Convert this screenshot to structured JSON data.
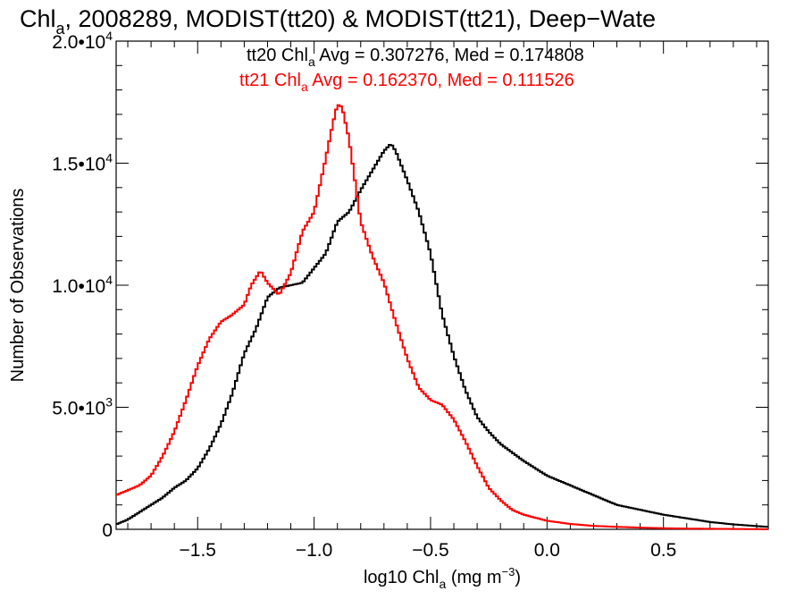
{
  "title": {
    "pre": "Chl",
    "sub": "a",
    "post": ", 2008289, MODIST(tt20) & MODIST(tt21), Deep−Wate"
  },
  "chart_data": {
    "type": "line",
    "style": "histogram-step",
    "xlabel": {
      "pre": "log10 Chl",
      "sub": "a",
      "mid": " (mg m",
      "sup": "−3",
      "post": ")"
    },
    "ylabel": "Number of Observations",
    "xlim": [
      -1.85,
      0.95
    ],
    "ylim": [
      0,
      20000
    ],
    "x_ticks": [
      {
        "value": -1.5,
        "label": "−1.5"
      },
      {
        "value": -1.0,
        "label": "−1.0"
      },
      {
        "value": -0.5,
        "label": "−0.5"
      },
      {
        "value": 0.0,
        "label": "0.0"
      },
      {
        "value": 0.5,
        "label": "0.5"
      }
    ],
    "y_ticks": [
      {
        "value": 0,
        "label": "0"
      },
      {
        "value": 5000,
        "mant": "5.0•10",
        "exp": "3"
      },
      {
        "value": 10000,
        "mant": "1.0•10",
        "exp": "4"
      },
      {
        "value": 15000,
        "mant": "1.5•10",
        "exp": "4"
      },
      {
        "value": 20000,
        "mant": "2.0•10",
        "exp": "4"
      }
    ],
    "grid": false,
    "series": [
      {
        "color": "#000000",
        "annotation": {
          "pre": "tt20 Chl",
          "sub": "a",
          "post": " Avg = 0.307276, Med = 0.174808"
        },
        "x": [
          -1.85,
          -1.8,
          -1.75,
          -1.7,
          -1.65,
          -1.6,
          -1.55,
          -1.5,
          -1.45,
          -1.4,
          -1.35,
          -1.3,
          -1.25,
          -1.2,
          -1.15,
          -1.1,
          -1.05,
          -1.0,
          -0.95,
          -0.9,
          -0.85,
          -0.8,
          -0.75,
          -0.7,
          -0.67,
          -0.65,
          -0.6,
          -0.55,
          -0.5,
          -0.45,
          -0.4,
          -0.35,
          -0.3,
          -0.25,
          -0.2,
          -0.1,
          0.0,
          0.1,
          0.2,
          0.3,
          0.4,
          0.5,
          0.6,
          0.7,
          0.8,
          0.95
        ],
        "y": [
          200,
          400,
          700,
          1000,
          1300,
          1700,
          2000,
          2500,
          3300,
          4300,
          5600,
          7200,
          8200,
          9500,
          9900,
          10000,
          10100,
          10700,
          11300,
          12600,
          13000,
          13900,
          14700,
          15500,
          15800,
          15500,
          14300,
          13000,
          11300,
          8800,
          7100,
          5700,
          4600,
          4000,
          3500,
          2800,
          2200,
          1800,
          1400,
          1000,
          800,
          600,
          450,
          300,
          200,
          100
        ]
      },
      {
        "color": "#ff0000",
        "annotation": {
          "pre": "tt21 Chl",
          "sub": "a",
          "post": " Avg = 0.162370, Med = 0.111526"
        },
        "x": [
          -1.85,
          -1.8,
          -1.75,
          -1.7,
          -1.65,
          -1.6,
          -1.55,
          -1.5,
          -1.45,
          -1.4,
          -1.35,
          -1.3,
          -1.27,
          -1.23,
          -1.2,
          -1.15,
          -1.1,
          -1.05,
          -1.0,
          -0.95,
          -0.92,
          -0.9,
          -0.88,
          -0.85,
          -0.8,
          -0.75,
          -0.7,
          -0.65,
          -0.6,
          -0.55,
          -0.5,
          -0.45,
          -0.4,
          -0.35,
          -0.3,
          -0.25,
          -0.2,
          -0.15,
          -0.1,
          0.0,
          0.1,
          0.2,
          0.3,
          0.4,
          0.5,
          0.6,
          0.8,
          0.95
        ],
        "y": [
          1400,
          1600,
          1800,
          2200,
          3000,
          4000,
          5300,
          6700,
          7800,
          8500,
          8800,
          9200,
          10000,
          10600,
          10100,
          9600,
          10500,
          12200,
          13000,
          15200,
          16600,
          17400,
          17300,
          16000,
          12600,
          11200,
          10100,
          8500,
          7000,
          5800,
          5300,
          5100,
          4500,
          3600,
          2600,
          1700,
          1200,
          800,
          600,
          350,
          220,
          140,
          100,
          70,
          45,
          30,
          15,
          5
        ]
      }
    ]
  }
}
